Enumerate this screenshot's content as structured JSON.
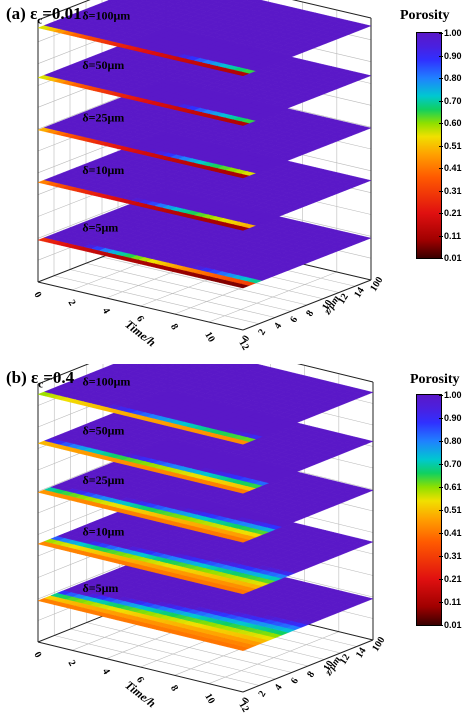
{
  "chart_data": [
    {
      "type": "surface",
      "title_prefix": "(a) ε",
      "title_sub": "c",
      "title_suffix": "=0.01",
      "xlabel": "Time/h",
      "ylabel": "z/μm",
      "x_ticks": [
        "0",
        "2",
        "4",
        "6",
        "8",
        "10",
        "12"
      ],
      "z_ticks": [
        "0",
        "2",
        "4",
        "6",
        "8",
        "10",
        "12",
        "14",
        "100"
      ],
      "colorbar_title": "Porosity",
      "colorbar_ticks": [
        "1.00",
        "0.90",
        "0.80",
        "0.70",
        "0.60",
        "0.51",
        "0.41",
        "0.31",
        "0.21",
        "0.11",
        "0.01"
      ],
      "colorbar_range": [
        0.01,
        1.0
      ],
      "surfaces": [
        {
          "label": "δ=100μm",
          "min_porosity": 0.01
        },
        {
          "label": "δ=50μm",
          "min_porosity": 0.01
        },
        {
          "label": "δ=25μm",
          "min_porosity": 0.01
        },
        {
          "label": "δ=10μm",
          "min_porosity": 0.01
        },
        {
          "label": "δ=5μm",
          "min_porosity": 0.01
        }
      ]
    },
    {
      "type": "surface",
      "title_prefix": "(b) ε",
      "title_sub": "c",
      "title_suffix": "=0.4",
      "xlabel": "Time/h",
      "ylabel": "z/μm",
      "x_ticks": [
        "0",
        "2",
        "4",
        "6",
        "8",
        "10",
        "12"
      ],
      "z_ticks": [
        "0",
        "2",
        "4",
        "6",
        "8",
        "10",
        "12",
        "14",
        "100"
      ],
      "colorbar_title": "Porosity",
      "colorbar_ticks": [
        "1.00",
        "0.90",
        "0.80",
        "0.70",
        "0.61",
        "0.51",
        "0.41",
        "0.31",
        "0.21",
        "0.11",
        "0.01"
      ],
      "colorbar_range": [
        0.01,
        1.0
      ],
      "surfaces": [
        {
          "label": "δ=100μm",
          "min_porosity": 0.4
        },
        {
          "label": "δ=50μm",
          "min_porosity": 0.4
        },
        {
          "label": "δ=25μm",
          "min_porosity": 0.4
        },
        {
          "label": "δ=10μm",
          "min_porosity": 0.4
        },
        {
          "label": "δ=5μm",
          "min_porosity": 0.4
        }
      ]
    }
  ]
}
